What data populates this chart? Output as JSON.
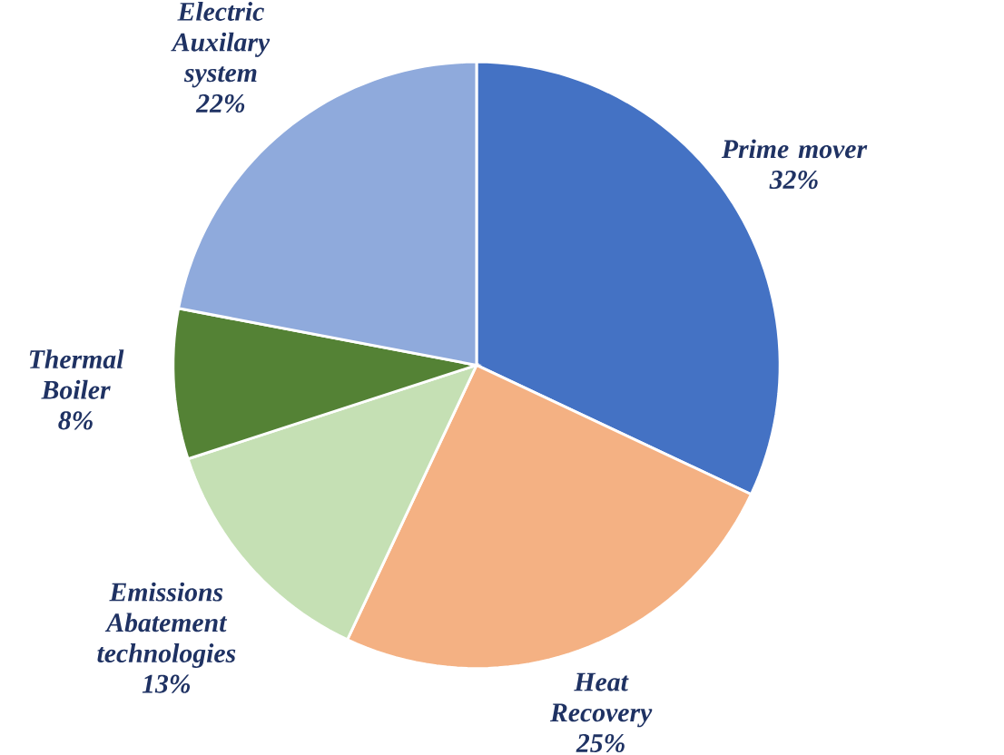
{
  "chart_data": {
    "type": "pie",
    "categories": [
      "Prime mover",
      "Heat Recovery",
      "Emissions Abatement technologies",
      "Thermal Boiler",
      "Electric Auxilary system"
    ],
    "values": [
      32,
      25,
      13,
      8,
      22
    ],
    "value_labels": [
      "32%",
      "25%",
      "13%",
      "8%",
      "22%"
    ],
    "colors": [
      "#4472c4",
      "#f4b183",
      "#c5e0b4",
      "#548235",
      "#8faadc"
    ]
  }
}
